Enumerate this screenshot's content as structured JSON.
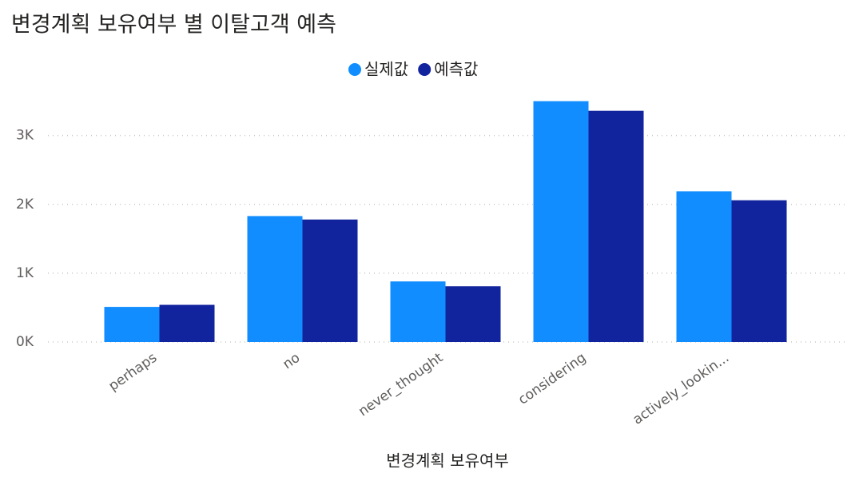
{
  "chart_data": {
    "type": "bar",
    "title": "변경계획 보유여부 별 이탈고객 예측",
    "x_label": "변경계획 보유여부",
    "categories": [
      "perhaps",
      "no",
      "never_thought",
      "considering",
      "actively_lookin..."
    ],
    "series": [
      {
        "name": "실제값",
        "color": "#118dff",
        "values": [
          510,
          1830,
          880,
          3500,
          2190
        ]
      },
      {
        "name": "예측값",
        "color": "#12239e",
        "values": [
          540,
          1780,
          810,
          3360,
          2060
        ]
      }
    ],
    "ylim": [
      0,
      3600
    ],
    "yticks": [
      {
        "value": 0,
        "label": "0K"
      },
      {
        "value": 1000,
        "label": "1K"
      },
      {
        "value": 2000,
        "label": "2K"
      },
      {
        "value": 3000,
        "label": "3K"
      }
    ],
    "grid": true,
    "legend": "top"
  }
}
